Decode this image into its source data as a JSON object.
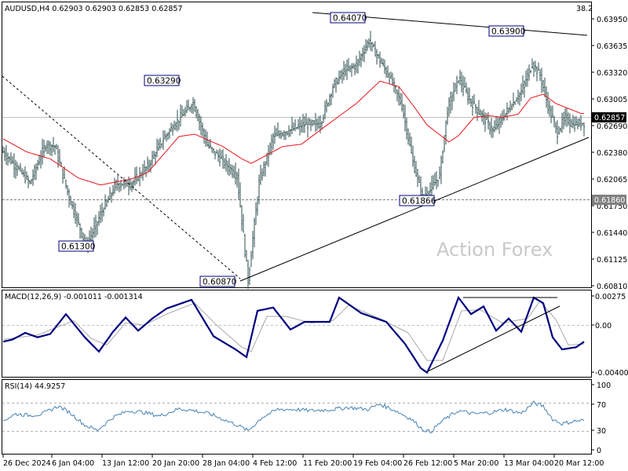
{
  "header": {
    "symbol_line": "AUDUSD,H4  0.62903 0.62903 0.62853 0.62857",
    "corner_value": "38.2"
  },
  "watermark": "Action Forex",
  "colors": {
    "price_bar": "#2f4f4f",
    "ma_line": "#e8141b",
    "macd_line": "#000080",
    "signal_line": "#a9a9a9",
    "rsi_line": "#4682b4",
    "label_border": "#000080",
    "current_price_box": "#000000",
    "level_line": "#808080",
    "trend_line": "#000000"
  },
  "chart_data": [
    {
      "type": "candlestick",
      "name": "price",
      "title": "AUDUSD,H4",
      "ylim": [
        0.6081,
        0.6428
      ],
      "y_ticks": [
        "0.63950",
        "0.63635",
        "0.63320",
        "0.63005",
        "0.62690",
        "0.62380",
        "0.62065",
        "0.61750",
        "0.61440",
        "0.61125",
        "0.60810"
      ],
      "current_price": "0.62857",
      "level_label": "0.61860",
      "level_value": 0.6186,
      "annotations": [
        {
          "text": "0.64070",
          "value": 0.6407
        },
        {
          "text": "0.63900",
          "value": 0.639
        },
        {
          "text": "0.63290",
          "value": 0.6329
        },
        {
          "text": "0.61866",
          "value": 0.61866
        },
        {
          "text": "0.61300",
          "value": 0.613
        },
        {
          "text": "0.60870",
          "value": 0.6087
        }
      ],
      "anchors": [
        [
          0,
          0.6255
        ],
        [
          10,
          0.6232
        ],
        [
          17,
          0.6214
        ],
        [
          27,
          0.6265
        ],
        [
          33,
          0.6262
        ],
        [
          42,
          0.6196
        ],
        [
          53,
          0.6132
        ],
        [
          63,
          0.6178
        ],
        [
          72,
          0.6213
        ],
        [
          82,
          0.6214
        ],
        [
          92,
          0.6236
        ],
        [
          102,
          0.6272
        ],
        [
          112,
          0.6298
        ],
        [
          121,
          0.6319
        ],
        [
          130,
          0.6264
        ],
        [
          140,
          0.6243
        ],
        [
          149,
          0.6224
        ],
        [
          156,
          0.6088
        ],
        [
          163,
          0.6215
        ],
        [
          172,
          0.6275
        ],
        [
          181,
          0.6282
        ],
        [
          191,
          0.629
        ],
        [
          202,
          0.6292
        ],
        [
          210,
          0.634
        ],
        [
          217,
          0.636
        ],
        [
          225,
          0.6368
        ],
        [
          233,
          0.64
        ],
        [
          241,
          0.637
        ],
        [
          248,
          0.6345
        ],
        [
          254,
          0.6315
        ],
        [
          261,
          0.6242
        ],
        [
          267,
          0.6196
        ],
        [
          272,
          0.6205
        ],
        [
          278,
          0.6225
        ],
        [
          283,
          0.631
        ],
        [
          290,
          0.6352
        ],
        [
          297,
          0.6323
        ],
        [
          306,
          0.63
        ],
        [
          312,
          0.6282
        ],
        [
          321,
          0.6308
        ],
        [
          330,
          0.6333
        ],
        [
          337,
          0.637
        ],
        [
          342,
          0.6355
        ],
        [
          347,
          0.6315
        ],
        [
          353,
          0.628
        ],
        [
          358,
          0.63
        ],
        [
          363,
          0.629
        ],
        [
          370,
          0.6293
        ],
        [
          374,
          0.6288
        ]
      ],
      "ma_anchors": [
        [
          0,
          0.6272
        ],
        [
          15,
          0.6255
        ],
        [
          30,
          0.6246
        ],
        [
          48,
          0.6221
        ],
        [
          62,
          0.6212
        ],
        [
          82,
          0.622
        ],
        [
          92,
          0.6228
        ],
        [
          112,
          0.6275
        ],
        [
          122,
          0.6278
        ],
        [
          140,
          0.6262
        ],
        [
          152,
          0.6246
        ],
        [
          158,
          0.624
        ],
        [
          178,
          0.6262
        ],
        [
          190,
          0.6265
        ],
        [
          205,
          0.6288
        ],
        [
          225,
          0.6318
        ],
        [
          240,
          0.6347
        ],
        [
          252,
          0.634
        ],
        [
          262,
          0.6313
        ],
        [
          270,
          0.629
        ],
        [
          284,
          0.6268
        ],
        [
          290,
          0.6276
        ],
        [
          300,
          0.63
        ],
        [
          310,
          0.6302
        ],
        [
          318,
          0.63
        ],
        [
          328,
          0.6304
        ],
        [
          336,
          0.6325
        ],
        [
          344,
          0.633
        ],
        [
          352,
          0.6318
        ],
        [
          368,
          0.6305
        ]
      ]
    },
    {
      "type": "line",
      "name": "macd",
      "title": "MACD(12,26,9) -0.001011 -0.001314",
      "ylim": [
        -0.0042,
        0.00285
      ],
      "y_ticks": [
        "0.00275",
        "0.00",
        "-0.004006"
      ],
      "series": [
        {
          "name": "MACD",
          "anchors": [
            [
              0,
              -0.0013
            ],
            [
              6,
              -0.0011
            ],
            [
              14,
              -0.0005
            ],
            [
              22,
              -0.0009
            ],
            [
              30,
              -0.0006
            ],
            [
              40,
              0.0012
            ],
            [
              52,
              -0.0009
            ],
            [
              61,
              -0.0022
            ],
            [
              70,
              -0.0004
            ],
            [
              78,
              0.0009
            ],
            [
              86,
              -0.0003
            ],
            [
              95,
              0.0008
            ],
            [
              104,
              0.0017
            ],
            [
              120,
              0.0025
            ],
            [
              134,
              -0.0008
            ],
            [
              148,
              -0.002
            ],
            [
              155,
              -0.0027
            ],
            [
              162,
              0.0015
            ],
            [
              172,
              0.0018
            ],
            [
              183,
              -0.0002
            ],
            [
              192,
              0.0005
            ],
            [
              208,
              0.0005
            ],
            [
              214,
              0.0027
            ],
            [
              228,
              0.0013
            ],
            [
              244,
              0.0005
            ],
            [
              256,
              -0.0015
            ],
            [
              266,
              -0.0037
            ],
            [
              270,
              -0.0041
            ],
            [
              280,
              -0.0012
            ],
            [
              290,
              0.0027
            ],
            [
              298,
              0.0012
            ],
            [
              306,
              0.0019
            ],
            [
              314,
              -0.0003
            ],
            [
              322,
              0.0008
            ],
            [
              330,
              -0.0004
            ],
            [
              338,
              0.0027
            ],
            [
              344,
              0.0022
            ],
            [
              350,
              -0.0009
            ],
            [
              356,
              -0.002
            ],
            [
              365,
              -0.0018
            ],
            [
              370,
              -0.0013
            ]
          ]
        },
        {
          "name": "Signal",
          "anchors": [
            [
              0,
              -0.0011
            ],
            [
              10,
              -0.0009
            ],
            [
              22,
              -0.0007
            ],
            [
              34,
              0.0
            ],
            [
              45,
              0.0006
            ],
            [
              56,
              -0.001
            ],
            [
              66,
              -0.0016
            ],
            [
              78,
              0.0004
            ],
            [
              90,
              0.0002
            ],
            [
              104,
              0.0012
            ],
            [
              122,
              0.0022
            ],
            [
              136,
              0.0002
            ],
            [
              152,
              -0.0018
            ],
            [
              158,
              -0.0022
            ],
            [
              168,
              0.001
            ],
            [
              180,
              0.001
            ],
            [
              196,
              0.0004
            ],
            [
              210,
              0.0006
            ],
            [
              220,
              0.002
            ],
            [
              240,
              0.0008
            ],
            [
              258,
              -0.0005
            ],
            [
              270,
              -0.003
            ],
            [
              280,
              -0.003
            ],
            [
              292,
              0.0015
            ],
            [
              304,
              0.0016
            ],
            [
              318,
              0.0004
            ],
            [
              334,
              0.0008
            ],
            [
              342,
              0.0024
            ],
            [
              352,
              0.0007
            ],
            [
              360,
              -0.0016
            ],
            [
              370,
              -0.0015
            ]
          ]
        }
      ]
    },
    {
      "type": "line",
      "name": "rsi",
      "title": "RSI(14) 44.9257",
      "ylim": [
        0,
        100
      ],
      "y_ticks": [
        "100",
        "70",
        "30",
        "0"
      ],
      "levels": [
        70,
        30
      ],
      "anchors": [
        [
          0,
          45
        ],
        [
          8,
          55
        ],
        [
          17,
          53
        ],
        [
          25,
          55
        ],
        [
          35,
          67
        ],
        [
          42,
          58
        ],
        [
          52,
          38
        ],
        [
          60,
          30
        ],
        [
          70,
          50
        ],
        [
          80,
          60
        ],
        [
          88,
          58
        ],
        [
          100,
          52
        ],
        [
          112,
          63
        ],
        [
          122,
          60
        ],
        [
          132,
          55
        ],
        [
          140,
          47
        ],
        [
          150,
          37
        ],
        [
          156,
          29
        ],
        [
          165,
          50
        ],
        [
          175,
          62
        ],
        [
          186,
          62
        ],
        [
          196,
          60
        ],
        [
          210,
          62
        ],
        [
          220,
          65
        ],
        [
          232,
          62
        ],
        [
          240,
          70
        ],
        [
          250,
          60
        ],
        [
          260,
          47
        ],
        [
          267,
          32
        ],
        [
          272,
          27
        ],
        [
          280,
          45
        ],
        [
          290,
          60
        ],
        [
          300,
          55
        ],
        [
          310,
          57
        ],
        [
          320,
          62
        ],
        [
          330,
          56
        ],
        [
          338,
          72
        ],
        [
          344,
          67
        ],
        [
          350,
          47
        ],
        [
          356,
          40
        ],
        [
          364,
          44
        ],
        [
          370,
          45
        ]
      ]
    }
  ],
  "x_axis_labels": [
    "26 Dec 2024",
    "6 Jan 04:00",
    "13 Jan 12:00",
    "20 Jan 20:00",
    "28 Jan 04:00",
    "4 Feb 12:00",
    "11 Feb 20:00",
    "19 Feb 04:00",
    "26 Feb 12:00",
    "5 Mar 20:00",
    "13 Mar 04:00",
    "20 Mar 12:00"
  ]
}
